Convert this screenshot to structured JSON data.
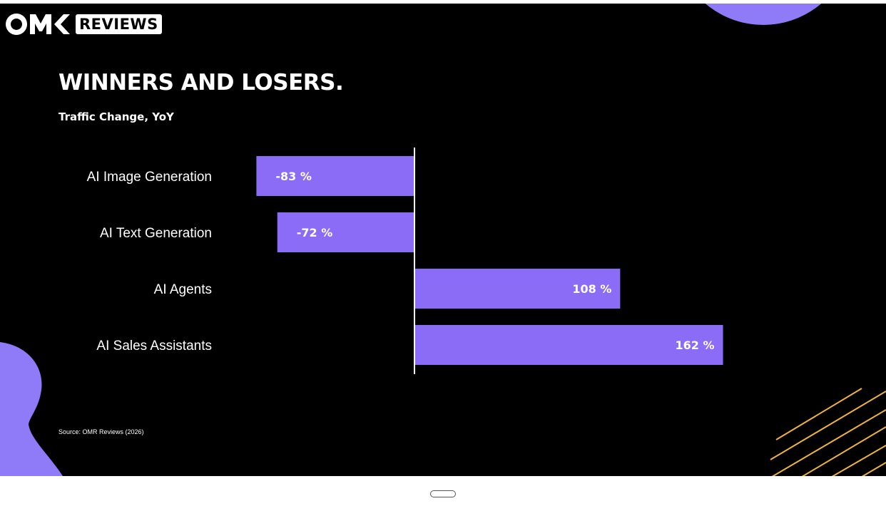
{
  "brand": {
    "logo_text": "OMR",
    "reviews_label": "REVIEWS"
  },
  "colors": {
    "background": "#000000",
    "bar": "#8b6cf6",
    "accent_purple": "#8f7bf7",
    "accent_yellow": "#f0b43c",
    "text": "#ffffff"
  },
  "title": "WINNERS AND LOSERS.",
  "subtitle": "Traffic Change, YoY",
  "source": "Source: OMR Reviews (2026)",
  "chart_data": {
    "type": "bar",
    "orientation": "horizontal",
    "categories": [
      "AI Image Generation",
      "AI Text Generation",
      "AI Agents",
      "AI Sales Assistants"
    ],
    "values": [
      -83,
      -72,
      108,
      162
    ],
    "value_labels": [
      "-83 %",
      "-72 %",
      "108 %",
      "162 %"
    ],
    "unit": "%",
    "title": "WINNERS AND LOSERS.",
    "subtitle": "Traffic Change, YoY",
    "xlabel": "",
    "ylabel": "",
    "grid": false,
    "legend": "none"
  }
}
